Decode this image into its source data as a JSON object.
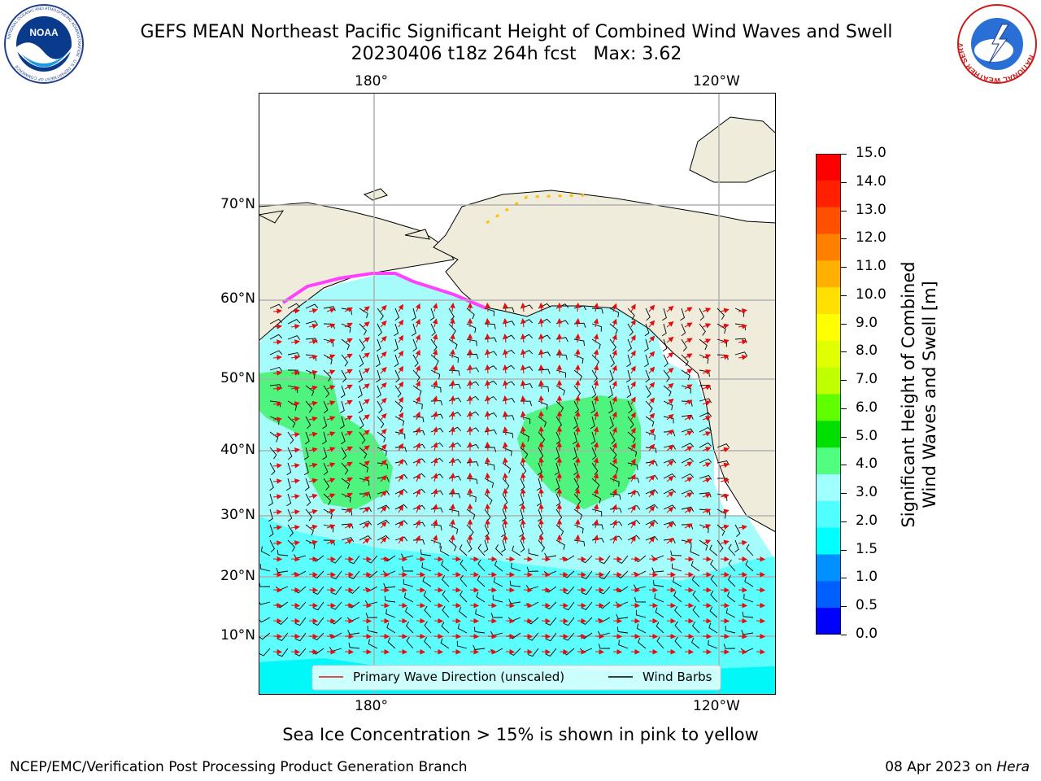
{
  "title": {
    "line1": "GEFS MEAN Northeast Pacific Significant Height of Combined Wind Waves and Swell",
    "line2": "20230406 t18z 264h fcst   Max: 3.62"
  },
  "map": {
    "lon_labels_top": [
      "180°",
      "120°W"
    ],
    "lon_labels_bottom": [
      "180°",
      "120°W"
    ],
    "lat_labels": [
      "70°N",
      "60°N",
      "50°N",
      "40°N",
      "30°N",
      "20°N",
      "10°N"
    ],
    "legend": {
      "wave_direction": "Primary Wave Direction (unscaled)",
      "wind_barbs": "Wind Barbs"
    },
    "colors": {
      "land": "#efecdc",
      "wave_arrow": "#e01010",
      "wind_barb": "#000000",
      "sea_ice": "#ff40ff"
    }
  },
  "colorbar": {
    "ticks": [
      "15.0",
      "14.0",
      "13.0",
      "12.0",
      "11.0",
      "10.0",
      "9.0",
      "8.0",
      "7.0",
      "6.0",
      "5.0",
      "4.0",
      "3.0",
      "2.0",
      "1.5",
      "1.0",
      "0.5",
      "0.0"
    ],
    "label_line1": "Significant Height of Combined",
    "label_line2": "Wind Waves and Swell [m]",
    "colors": [
      "#ff0000",
      "#ff2000",
      "#ff5000",
      "#ff8000",
      "#ffb000",
      "#ffe000",
      "#ffff00",
      "#e0ff00",
      "#c0ff00",
      "#60ff00",
      "#00e000",
      "#50ff80",
      "#a0ffff",
      "#50ffff",
      "#00ffff",
      "#0090ff",
      "#0060ff",
      "#0000ff"
    ]
  },
  "sea_ice_note": "Sea Ice Concentration > 15% is shown in pink to yellow",
  "footer": {
    "left": "NCEP/EMC/Verification Post Processing Product Generation Branch",
    "date": "08 Apr 2023 on ",
    "host": "Hera"
  },
  "logos": {
    "noaa_text": "NOAA",
    "noaa_ring": "NATIONAL OCEANIC AND ATMOSPHERIC ADMINISTRATION · U.S. DEPARTMENT OF COMMERCE",
    "nws_ring": "NATIONAL WEATHER SERVICE"
  }
}
